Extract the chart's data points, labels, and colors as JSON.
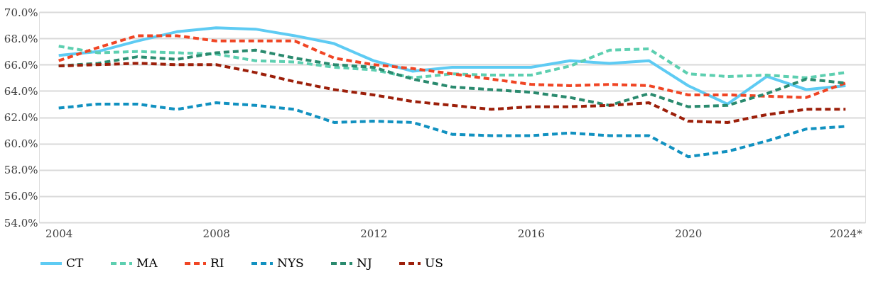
{
  "chart_data": {
    "type": "line",
    "categories": [
      "2004",
      null,
      null,
      null,
      "2008",
      null,
      null,
      null,
      "2012",
      null,
      null,
      null,
      "2016",
      null,
      null,
      null,
      "2020",
      null,
      null,
      null,
      "2024*"
    ],
    "ylim": [
      54,
      70
    ],
    "yticks": [
      {
        "value": 54,
        "label": "54.0%"
      },
      {
        "value": 56,
        "label": "56.0%"
      },
      {
        "value": 58,
        "label": "58.0%"
      },
      {
        "value": 60,
        "label": "60.0%"
      },
      {
        "value": 62,
        "label": "62.0%"
      },
      {
        "value": 64,
        "label": "64.0%"
      },
      {
        "value": 66,
        "label": "66.0%"
      },
      {
        "value": 68,
        "label": "68.0%"
      },
      {
        "value": 70,
        "label": "70.0%"
      }
    ],
    "grid": "y",
    "legend": "bottom",
    "marker": "none",
    "series": [
      {
        "name": "CT",
        "color": "#5ecbf3",
        "line_style": "solid",
        "values": [
          66.7,
          67.0,
          67.8,
          68.5,
          68.8,
          68.7,
          68.2,
          67.6,
          66.3,
          65.5,
          65.8,
          65.8,
          65.8,
          66.3,
          66.1,
          66.3,
          64.4,
          63.0,
          65.1,
          64.1,
          64.4
        ]
      },
      {
        "name": "MA",
        "color": "#5dcfb0",
        "line_style": "dashed",
        "values": [
          67.4,
          66.9,
          67.0,
          66.9,
          66.8,
          66.3,
          66.2,
          65.8,
          65.6,
          65.0,
          65.3,
          65.2,
          65.2,
          65.9,
          67.1,
          67.2,
          65.3,
          65.1,
          65.2,
          65.0,
          65.4
        ]
      },
      {
        "name": "RI",
        "color": "#f04524",
        "line_style": "dashed",
        "values": [
          66.3,
          67.3,
          68.2,
          68.2,
          67.8,
          67.8,
          67.8,
          66.5,
          66.0,
          65.7,
          65.3,
          64.9,
          64.5,
          64.4,
          64.5,
          64.4,
          63.7,
          63.7,
          63.6,
          63.5,
          64.6
        ]
      },
      {
        "name": "NYS",
        "color": "#1191c0",
        "line_style": "dashed",
        "values": [
          62.7,
          63.0,
          63.0,
          62.6,
          63.1,
          62.9,
          62.6,
          61.6,
          61.7,
          61.6,
          60.7,
          60.6,
          60.6,
          60.8,
          60.6,
          60.6,
          59.0,
          59.4,
          60.2,
          61.1,
          61.3
        ]
      },
      {
        "name": "NJ",
        "color": "#2a8a6e",
        "line_style": "dashed",
        "values": [
          65.9,
          66.1,
          66.6,
          66.4,
          66.9,
          67.1,
          66.5,
          66.0,
          65.8,
          64.9,
          64.3,
          64.1,
          63.9,
          63.5,
          62.9,
          63.8,
          62.8,
          62.9,
          63.8,
          64.9,
          64.6
        ]
      },
      {
        "name": "US",
        "color": "#9c1f0a",
        "line_style": "dashed",
        "values": [
          65.9,
          66.0,
          66.1,
          66.0,
          66.0,
          65.4,
          64.7,
          64.1,
          63.7,
          63.2,
          62.9,
          62.6,
          62.8,
          62.8,
          62.9,
          63.1,
          61.7,
          61.6,
          62.2,
          62.6,
          62.6
        ]
      }
    ]
  }
}
